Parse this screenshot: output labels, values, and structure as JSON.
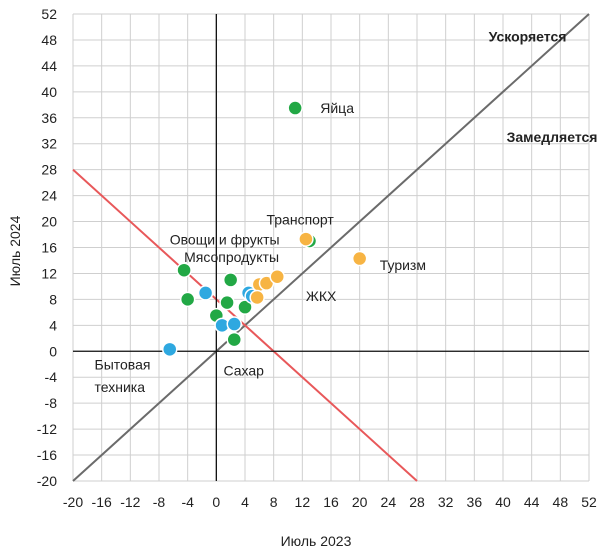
{
  "chart_data": {
    "type": "scatter",
    "xlabel": "Июль 2023",
    "ylabel": "Июль 2024",
    "xlim": [
      -20,
      52
    ],
    "ylim": [
      -20,
      52
    ],
    "x_ticks": [
      -20,
      -16,
      -12,
      -8,
      -4,
      0,
      4,
      8,
      12,
      16,
      20,
      24,
      28,
      32,
      36,
      40,
      44,
      48,
      52
    ],
    "y_ticks": [
      -20,
      -16,
      -12,
      -8,
      -4,
      0,
      4,
      8,
      12,
      16,
      20,
      24,
      28,
      32,
      36,
      40,
      44,
      48,
      52
    ],
    "grid": true,
    "colors": {
      "green": "#22a845",
      "blue": "#2ea8e0",
      "orange": "#f7b443",
      "diagonal": "#6b6b6b",
      "red_line": "#e8585a",
      "grid": "#cfcfcf"
    },
    "lines": [
      {
        "name": "diagonal",
        "color": "diagonal",
        "points": [
          [
            -20,
            -20
          ],
          [
            52,
            52
          ]
        ]
      },
      {
        "name": "red",
        "color": "red_line",
        "points": [
          [
            -20,
            28
          ],
          [
            28,
            -20
          ]
        ]
      }
    ],
    "points": [
      {
        "x": 11,
        "y": 37.5,
        "color": "green"
      },
      {
        "x": 13,
        "y": 17,
        "color": "green"
      },
      {
        "x": -4.5,
        "y": 12.5,
        "color": "green"
      },
      {
        "x": -4,
        "y": 8,
        "color": "green"
      },
      {
        "x": 2,
        "y": 11,
        "color": "green"
      },
      {
        "x": 1.5,
        "y": 7.5,
        "color": "green"
      },
      {
        "x": 0,
        "y": 5.5,
        "color": "green"
      },
      {
        "x": 2.5,
        "y": 1.8,
        "color": "green"
      },
      {
        "x": 4,
        "y": 6.8,
        "color": "green"
      },
      {
        "x": -1.5,
        "y": 9,
        "color": "blue"
      },
      {
        "x": -6.5,
        "y": 0.3,
        "color": "blue"
      },
      {
        "x": 4.5,
        "y": 9,
        "color": "blue"
      },
      {
        "x": 5,
        "y": 8.5,
        "color": "blue"
      },
      {
        "x": 0.8,
        "y": 4,
        "color": "blue"
      },
      {
        "x": 2.5,
        "y": 4.2,
        "color": "blue"
      },
      {
        "x": 12.5,
        "y": 17.3,
        "color": "orange"
      },
      {
        "x": 20,
        "y": 14.3,
        "color": "orange"
      },
      {
        "x": 6,
        "y": 10.3,
        "color": "orange"
      },
      {
        "x": 7,
        "y": 10.5,
        "color": "orange"
      },
      {
        "x": 8.5,
        "y": 11.5,
        "color": "orange"
      },
      {
        "x": 5.7,
        "y": 8.3,
        "color": "orange"
      }
    ],
    "annotations": [
      {
        "text": "Ускоряется",
        "x": 38,
        "y": 48.5,
        "bold": true
      },
      {
        "text": "Замедляется",
        "x": 40.5,
        "y": 33,
        "bold": true
      },
      {
        "text": "Яйца",
        "x": 14.5,
        "y": 37.5
      },
      {
        "text": "Транспорт",
        "x": 7,
        "y": 20.3
      },
      {
        "text": "Овощи и фрукты",
        "x": -6.5,
        "y": 17.2
      },
      {
        "text": "Мясопродукты",
        "x": -4.5,
        "y": 14.5
      },
      {
        "text": "Туризм",
        "x": 22.8,
        "y": 13.3
      },
      {
        "text": "ЖКХ",
        "x": 12.5,
        "y": 8.5
      },
      {
        "text": "Бытовая",
        "x": -17,
        "y": -2
      },
      {
        "text": "техника",
        "x": -17,
        "y": -5.5
      },
      {
        "text": "Сахар",
        "x": 1,
        "y": -3
      }
    ]
  }
}
